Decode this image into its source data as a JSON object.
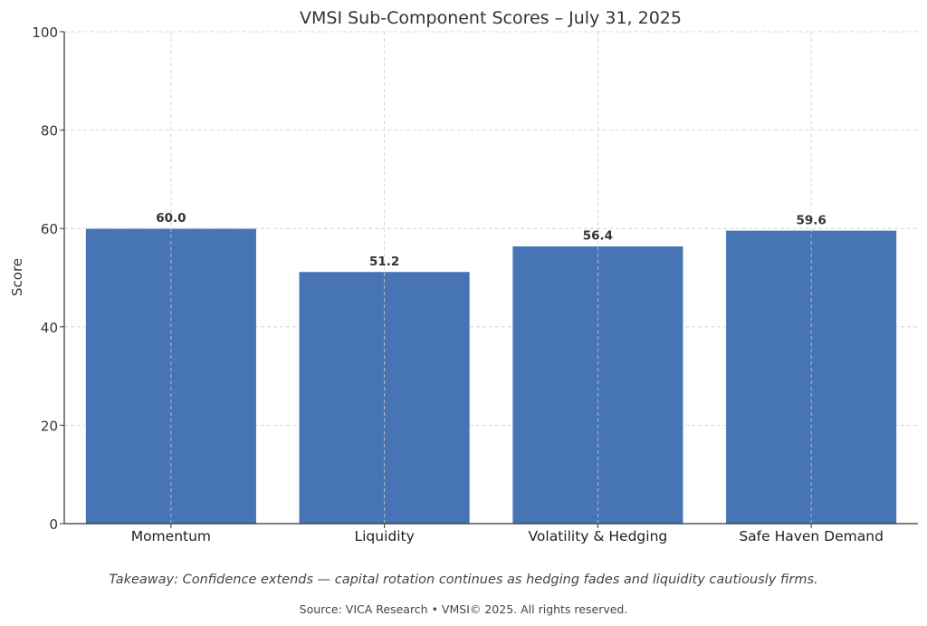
{
  "chart_data": {
    "type": "bar",
    "title": "VMSI Sub-Component Scores – July 31, 2025",
    "xlabel": "",
    "ylabel": "Score",
    "categories": [
      "Momentum",
      "Liquidity",
      "Volatility & Hedging",
      "Safe Haven Demand"
    ],
    "values": [
      60.0,
      51.2,
      56.4,
      59.6
    ],
    "value_labels": [
      "60.0",
      "51.2",
      "56.4",
      "59.6"
    ],
    "ylim": [
      0,
      100
    ],
    "yticks": [
      0,
      20,
      40,
      60,
      80,
      100
    ],
    "grid": true,
    "bar_color": "#4674b5"
  },
  "footer": {
    "takeaway": "Takeaway: Confidence extends — capital rotation continues as hedging fades and liquidity cautiously firms.",
    "source": "Source: VICA Research • VMSI© 2025. All rights reserved."
  }
}
